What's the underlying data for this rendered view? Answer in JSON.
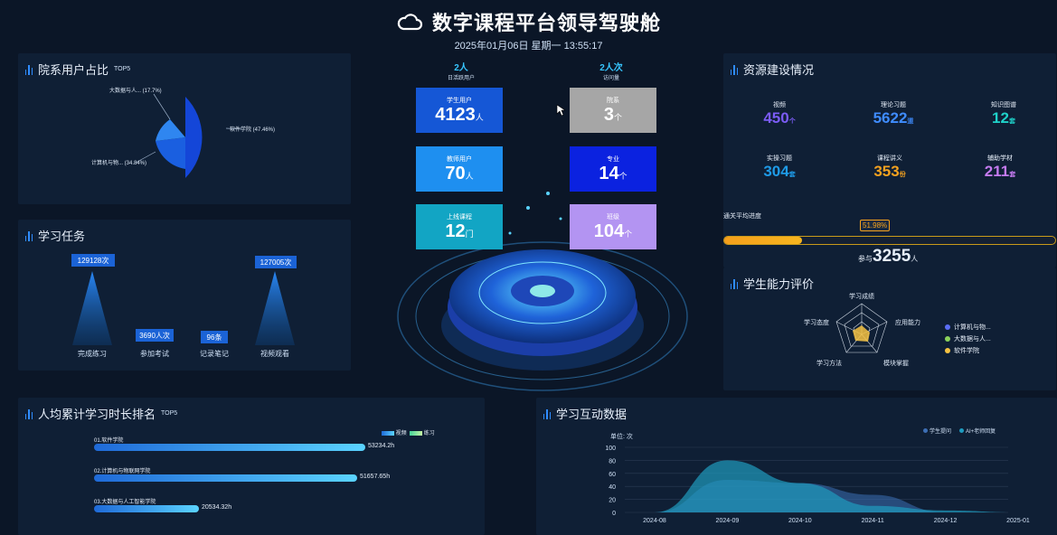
{
  "header": {
    "title": "数字课程平台领导驾驶舱",
    "datetime": "2025年01月06日 星期一 13:55:17"
  },
  "panels": {
    "user_share": {
      "title": "院系用户占比",
      "suffix": "TOP5"
    },
    "tasks": {
      "title": "学习任务"
    },
    "resources": {
      "title": "资源建设情况"
    },
    "ability": {
      "title": "学生能力评价"
    },
    "ranking": {
      "title": "人均累计学习时长排名",
      "suffix": "TOP5"
    },
    "interaction": {
      "title": "学习互动数据"
    }
  },
  "center": {
    "daily_active": {
      "value": "2人",
      "label": "日活跃用户"
    },
    "visits": {
      "value": "2人次",
      "label": "访问量"
    },
    "tiles": [
      {
        "label": "学生用户",
        "value": "4123",
        "unit": "人",
        "color": "#1557d6"
      },
      {
        "label": "院系",
        "value": "3",
        "unit": "个",
        "color": "#a6a6a6"
      },
      {
        "label": "教师用户",
        "value": "70",
        "unit": "人",
        "color": "#1e8ff0"
      },
      {
        "label": "专业",
        "value": "14",
        "unit": "个",
        "color": "#0b22e0"
      },
      {
        "label": "上线课程",
        "value": "12",
        "unit": "门",
        "color": "#12a5c4"
      },
      {
        "label": "班级",
        "value": "104",
        "unit": "个",
        "color": "#b394f2"
      }
    ]
  },
  "pie": {
    "labels": [
      "大数据与人... (17.7%)",
      "软件学院 (47.46%)",
      "计算机与物... (34.84%)"
    ],
    "values": [
      17.7,
      47.46,
      34.84
    ]
  },
  "tasks": {
    "items": [
      {
        "label": "完成练习",
        "value": "129128次",
        "level": 1.0
      },
      {
        "label": "参加考试",
        "value": "3690人次",
        "level": 0.03
      },
      {
        "label": "记录笔记",
        "value": "96条",
        "level": 0.01
      },
      {
        "label": "视频观看",
        "value": "127005次",
        "level": 0.98
      }
    ]
  },
  "resources": {
    "items": [
      {
        "label": "视频",
        "value": "450",
        "unit": "个",
        "color": "#7b5cf5"
      },
      {
        "label": "理论习题",
        "value": "5622",
        "unit": "道",
        "color": "#3f8cff"
      },
      {
        "label": "知识图谱",
        "value": "12",
        "unit": "套",
        "color": "#1fd1c9"
      },
      {
        "label": "实操习题",
        "value": "304",
        "unit": "套",
        "color": "#1e9be8"
      },
      {
        "label": "课程讲义",
        "value": "353",
        "unit": "份",
        "color": "#f5a21f"
      },
      {
        "label": "辅助学材",
        "value": "211",
        "unit": "套",
        "color": "#c57bf0"
      }
    ],
    "progress": {
      "label": "通关平均进度",
      "percent_text": "51.98%",
      "percent": 51.98,
      "participants_prefix": "参与",
      "participants": "3255",
      "participants_unit": "人"
    }
  },
  "ability": {
    "axes": [
      "学习成绩",
      "应用能力",
      "模块掌握",
      "学习方法",
      "学习态度"
    ],
    "legend": [
      {
        "name": "计算机与物...",
        "color": "#5b6ef5"
      },
      {
        "name": "大数据与人...",
        "color": "#8bd35b"
      },
      {
        "name": "软件学院",
        "color": "#f5c242"
      }
    ]
  },
  "ranking": {
    "legend": [
      "视频",
      "练习"
    ],
    "items": [
      {
        "label": "01.软件学院",
        "value": "53234.2h",
        "num": 53234.2
      },
      {
        "label": "02.计算机与物联网学院",
        "value": "51657.65h",
        "num": 51657.65
      },
      {
        "label": "03.大数据与人工智能学院",
        "value": "20534.32h",
        "num": 20534.32
      }
    ]
  },
  "chart_data": {
    "type": "area",
    "title": "",
    "ylabel": "单位: 次",
    "categories": [
      "2024-08",
      "2024-09",
      "2024-10",
      "2024-11",
      "2024-12",
      "2025-01"
    ],
    "yticks": [
      "100",
      "80",
      "60",
      "40",
      "20",
      "0"
    ],
    "ylim": [
      0,
      100
    ],
    "legend_position": "top-right",
    "series": [
      {
        "name": "学生提问",
        "color": "#3d6fb5",
        "values": [
          0,
          50,
          45,
          27,
          0,
          0
        ]
      },
      {
        "name": "AI+老师回复",
        "color": "#1f9bbf",
        "values": [
          0,
          80,
          45,
          10,
          3,
          0
        ]
      }
    ]
  }
}
